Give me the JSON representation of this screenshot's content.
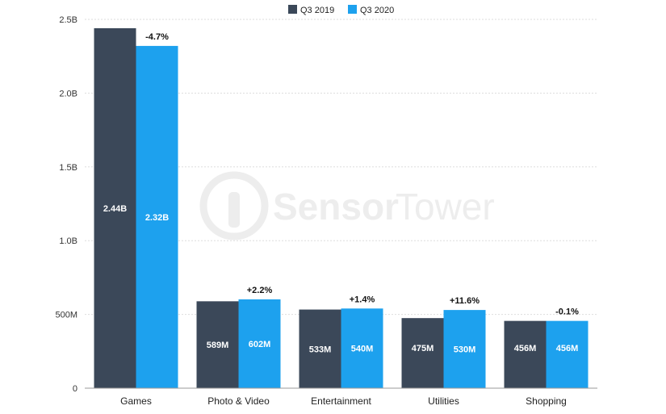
{
  "colors": {
    "q3_2019": "#3b4859",
    "q3_2020": "#1da1ee",
    "grid": "#dddddd",
    "axis": "#999999",
    "watermark": "#ededed"
  },
  "watermark": {
    "text_sensor": "Sensor",
    "text_tower": "Tower"
  },
  "chart_data": {
    "type": "bar",
    "categories": [
      "Games",
      "Photo & Video",
      "Entertainment",
      "Utilities",
      "Shopping"
    ],
    "series": [
      {
        "name": "Q3 2019",
        "values": [
          2440,
          589,
          533,
          475,
          456
        ],
        "labels": [
          "2.44B",
          "589M",
          "533M",
          "475M",
          "456M"
        ]
      },
      {
        "name": "Q3 2020",
        "values": [
          2320,
          602,
          540,
          530,
          456
        ],
        "labels": [
          "2.32B",
          "602M",
          "540M",
          "530M",
          "456M"
        ]
      }
    ],
    "changes": [
      "-4.7%",
      "+2.2%",
      "+1.4%",
      "+11.6%",
      "-0.1%"
    ],
    "y_ticks": [
      0,
      500,
      1000,
      1500,
      2000,
      2500
    ],
    "y_tick_labels": [
      "0",
      "500M",
      "1.0B",
      "1.5B",
      "2.0B",
      "2.5B"
    ],
    "ylim": [
      0,
      2500
    ],
    "title": "",
    "xlabel": "",
    "ylabel": "",
    "grid": true,
    "legend_position": "top-center"
  }
}
